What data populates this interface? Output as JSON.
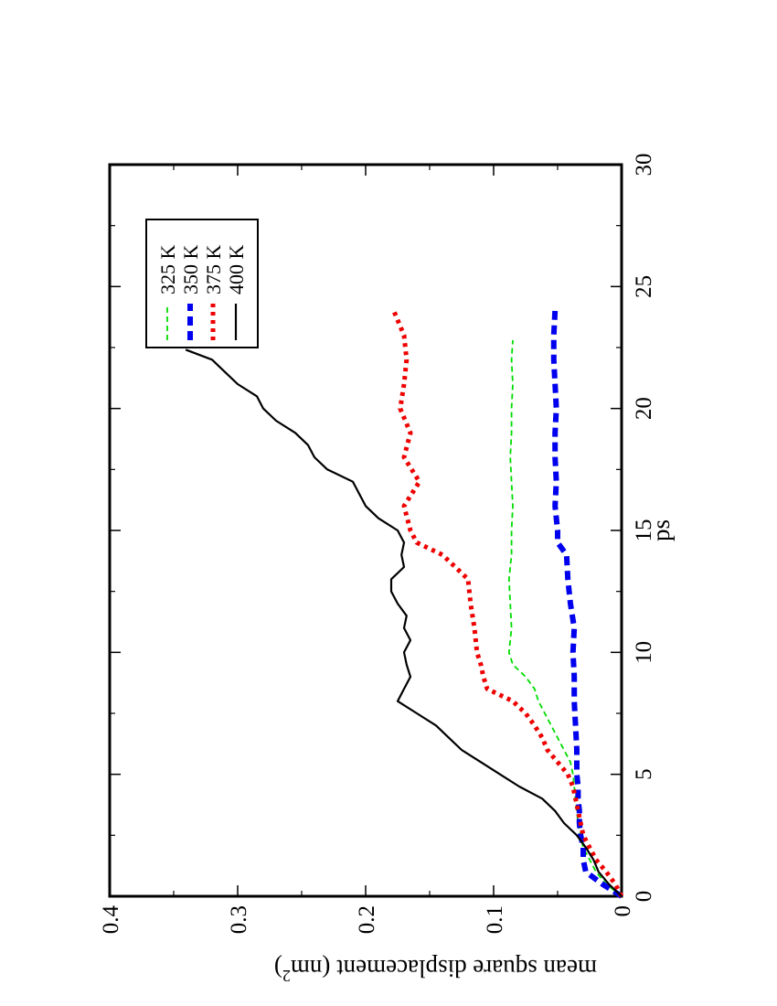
{
  "chart_data": {
    "type": "line",
    "orientation": "rotated-90-clockwise",
    "xlabel": "ps",
    "ylabel": "mean square displacement (nm",
    "ylabel_sup": "2",
    "ylabel_close": ")",
    "xlim": [
      0,
      30
    ],
    "ylim": [
      0,
      0.4
    ],
    "xticks": [
      0,
      5,
      10,
      15,
      20,
      25,
      30
    ],
    "xtick_labels": [
      "0",
      "5",
      "10",
      "15",
      "20",
      "25",
      "30"
    ],
    "yticks": [
      0,
      0.1,
      0.2,
      0.3,
      0.4
    ],
    "ytick_labels": [
      "0",
      "0.1",
      "0.2",
      "0.3",
      "0.4"
    ],
    "grid": false,
    "legend_position": "top-right",
    "series": [
      {
        "name": "325 K",
        "color": "#00dd00",
        "style": "dashed",
        "x": [
          0,
          0.5,
          1,
          1.5,
          2,
          2.5,
          3,
          3.5,
          4,
          4.5,
          5,
          5.5,
          6,
          6.5,
          7,
          7.5,
          8,
          8.5,
          9,
          9.5,
          10,
          11,
          12,
          13,
          14,
          15,
          16,
          17,
          18,
          19,
          20,
          21,
          22,
          22.8
        ],
        "y": [
          0,
          0.012,
          0.02,
          0.025,
          0.03,
          0.032,
          0.034,
          0.035,
          0.036,
          0.037,
          0.038,
          0.04,
          0.045,
          0.05,
          0.055,
          0.06,
          0.065,
          0.068,
          0.075,
          0.085,
          0.088,
          0.086,
          0.087,
          0.088,
          0.086,
          0.086,
          0.085,
          0.086,
          0.087,
          0.086,
          0.086,
          0.085,
          0.086,
          0.085
        ]
      },
      {
        "name": "350 K",
        "color": "#0000ee",
        "style": "thick-dashed",
        "x": [
          0,
          0.5,
          1,
          1.5,
          2,
          2.5,
          3,
          3.5,
          4,
          4.5,
          5,
          6,
          7,
          8,
          9,
          10,
          11,
          12,
          13,
          14,
          14.5,
          15,
          16,
          17,
          18,
          19,
          20,
          21,
          22,
          23,
          24
        ],
        "y": [
          0,
          0.015,
          0.028,
          0.03,
          0.03,
          0.032,
          0.033,
          0.033,
          0.034,
          0.034,
          0.035,
          0.035,
          0.036,
          0.037,
          0.037,
          0.038,
          0.037,
          0.04,
          0.042,
          0.043,
          0.05,
          0.05,
          0.052,
          0.051,
          0.052,
          0.052,
          0.051,
          0.052,
          0.053,
          0.053,
          0.052
        ]
      },
      {
        "name": "375 K",
        "color": "#ee0000",
        "style": "dotted",
        "x": [
          0,
          0.5,
          1,
          1.5,
          2,
          2.5,
          3,
          3.5,
          4,
          4.5,
          5,
          5.5,
          6,
          6.5,
          7,
          7.5,
          8,
          8.5,
          9,
          9.5,
          10,
          11,
          12,
          13,
          13.5,
          14,
          14.5,
          15,
          16,
          17,
          18,
          19,
          20,
          21,
          22,
          23,
          24
        ],
        "y": [
          0,
          0.005,
          0.012,
          0.02,
          0.025,
          0.03,
          0.032,
          0.034,
          0.036,
          0.038,
          0.042,
          0.05,
          0.058,
          0.062,
          0.068,
          0.075,
          0.085,
          0.105,
          0.108,
          0.11,
          0.113,
          0.115,
          0.118,
          0.12,
          0.13,
          0.14,
          0.16,
          0.165,
          0.17,
          0.158,
          0.17,
          0.165,
          0.173,
          0.17,
          0.168,
          0.17,
          0.178
        ]
      },
      {
        "name": "400 K",
        "color": "#000000",
        "style": "solid",
        "x": [
          0,
          0.5,
          1,
          1.5,
          2,
          2.5,
          3,
          3.5,
          4,
          4.5,
          5,
          5.5,
          6,
          6.5,
          7,
          7.5,
          8,
          8.5,
          9,
          9.5,
          10,
          10.5,
          11,
          11.5,
          12,
          12.5,
          13,
          13.5,
          14,
          14.5,
          15,
          15.5,
          16,
          16.5,
          17,
          17.5,
          18,
          18.5,
          19,
          19.5,
          20,
          20.5,
          21,
          21.5,
          22,
          22.4
        ],
        "y": [
          0,
          0.01,
          0.018,
          0.022,
          0.028,
          0.035,
          0.045,
          0.052,
          0.062,
          0.08,
          0.095,
          0.11,
          0.125,
          0.135,
          0.145,
          0.16,
          0.175,
          0.17,
          0.165,
          0.168,
          0.17,
          0.165,
          0.17,
          0.168,
          0.175,
          0.18,
          0.18,
          0.17,
          0.172,
          0.17,
          0.175,
          0.19,
          0.2,
          0.205,
          0.21,
          0.23,
          0.24,
          0.245,
          0.255,
          0.27,
          0.28,
          0.285,
          0.3,
          0.31,
          0.32,
          0.34
        ]
      }
    ]
  }
}
